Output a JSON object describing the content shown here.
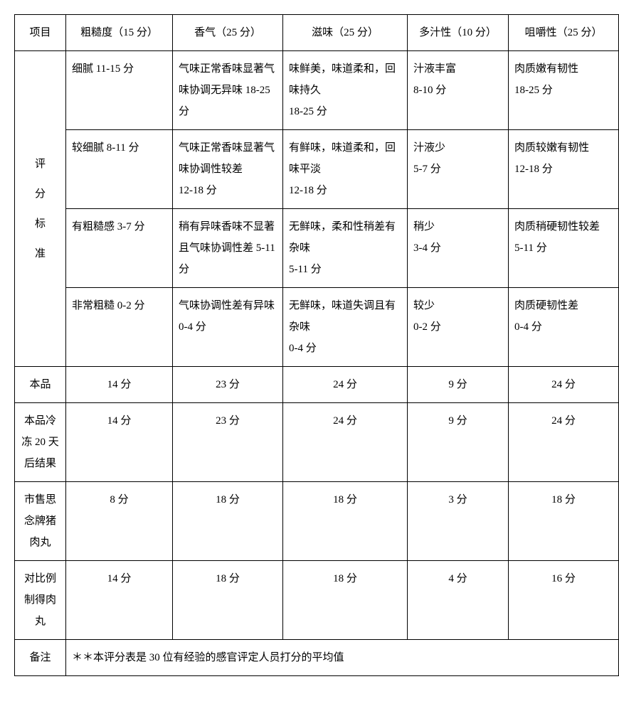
{
  "headers": {
    "item": "项目",
    "roughness": "粗糙度（15 分）",
    "aroma": "香气（25 分）",
    "taste": "滋味（25 分）",
    "juiciness": "多汁性（10 分）",
    "chewiness": "咀嚼性（25 分）"
  },
  "criteria_label_chars": [
    "评",
    "分",
    "标",
    "准"
  ],
  "criteria": [
    {
      "roughness": "细腻 11-15 分",
      "aroma": "气味正常香味显著气味协调无异味 18-25 分",
      "taste": "味鲜美，味道柔和，回味持久\n18-25 分",
      "juiciness": "汁液丰富\n8-10 分",
      "chewiness": "肉质嫩有韧性\n18-25 分"
    },
    {
      "roughness": "较细腻 8-11 分",
      "aroma": "气味正常香味显著气味协调性较差\n12-18 分",
      "taste": "有鲜味，味道柔和，回味平淡\n12-18 分",
      "juiciness": "汁液少\n5-7 分",
      "chewiness": "肉质较嫩有韧性\n12-18 分"
    },
    {
      "roughness": "有粗糙感 3-7 分",
      "aroma": "稍有异味香味不显著且气味协调性差 5-11 分",
      "taste": "无鲜味，柔和性稍差有杂味\n5-11 分",
      "juiciness": "稍少\n3-4 分",
      "chewiness": "肉质稍硬韧性较差\n5-11 分"
    },
    {
      "roughness": "非常粗糙 0-2 分",
      "aroma": "气味协调性差有异味 0-4 分",
      "taste": "无鲜味，味道失调且有杂味\n0-4 分",
      "juiciness": "较少\n0-2 分",
      "chewiness": "肉质硬韧性差\n0-4 分"
    }
  ],
  "results": [
    {
      "label": "本品",
      "scores": [
        "14 分",
        "23 分",
        "24 分",
        "9 分",
        "24 分"
      ]
    },
    {
      "label": "本品冷冻 20 天后结果",
      "scores": [
        "14 分",
        "23 分",
        "24 分",
        "9 分",
        "24 分"
      ]
    },
    {
      "label": "市售思念牌猪肉丸",
      "scores": [
        "8 分",
        "18 分",
        "18 分",
        "3 分",
        "18 分"
      ]
    },
    {
      "label": "对比例制得肉丸",
      "scores": [
        "14 分",
        "18 分",
        "18 分",
        "4 分",
        "16 分"
      ]
    }
  ],
  "note_label": "备注",
  "note_text": "＊＊本评分表是 30 位有经验的感官评定人员打分的平均值"
}
